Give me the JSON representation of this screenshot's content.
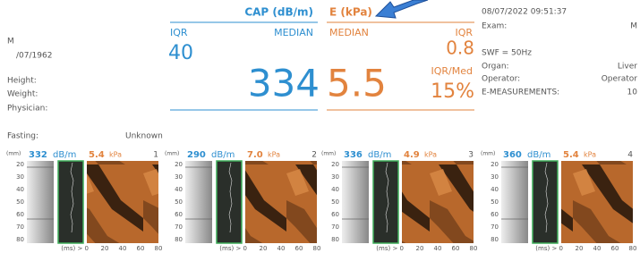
{
  "patient": {
    "sex": "M",
    "dob": "/07/1962",
    "height": "Height:",
    "weight": "Weight:",
    "physician": "Physician:",
    "fasting": "Fasting:",
    "fasting_value": "Unknown"
  },
  "cap": {
    "title": "CAP (dB/m)",
    "iqr_label": "IQR",
    "median_label": "MEDIAN",
    "iqr": "40",
    "median": "334"
  },
  "e": {
    "title": "E (kPa)",
    "median_label": "MEDIAN",
    "iqr_label": "IQR",
    "iqr": "0.8",
    "median": "5.5",
    "ratio_label": "IQR/Med",
    "ratio": "15%"
  },
  "exam": {
    "datetime": "08/07/2022 09:51:37",
    "exam_label": "Exam:",
    "exam_value": "M",
    "swf": "SWF = 50Hz",
    "organ_label": "Organ:",
    "organ": "Liver",
    "operator_label": "Operator:",
    "operator": "Operator",
    "measurements_label": "E-MEASUREMENTS:",
    "measurements": "10"
  },
  "panels": [
    {
      "depth_unit": "(mm)",
      "cap": "332",
      "cap_unit": "dB/m",
      "e": "5.4",
      "e_unit": "kPa",
      "index": "1",
      "y_ticks": [
        "20",
        "30",
        "40",
        "50",
        "60",
        "70",
        "80"
      ],
      "x_ticks": [
        "(ms) > 0",
        "20",
        "40",
        "60",
        "80"
      ]
    },
    {
      "depth_unit": "(mm)",
      "cap": "290",
      "cap_unit": "dB/m",
      "e": "7.0",
      "e_unit": "kPa",
      "index": "2",
      "y_ticks": [
        "20",
        "30",
        "40",
        "50",
        "60",
        "70",
        "80"
      ],
      "x_ticks": [
        "(ms) > 0",
        "20",
        "40",
        "60",
        "80"
      ]
    },
    {
      "depth_unit": "(mm)",
      "cap": "336",
      "cap_unit": "dB/m",
      "e": "4.9",
      "e_unit": "kPa",
      "index": "3",
      "y_ticks": [
        "20",
        "30",
        "40",
        "50",
        "60",
        "70",
        "80"
      ],
      "x_ticks": [
        "(ms) > 0",
        "20",
        "40",
        "60",
        "80"
      ]
    },
    {
      "depth_unit": "(mm)",
      "cap": "360",
      "cap_unit": "dB/m",
      "e": "5.4",
      "e_unit": "kPa",
      "index": "4",
      "y_ticks": [
        "20",
        "30",
        "40",
        "50",
        "60",
        "70",
        "80"
      ],
      "x_ticks": [
        "(ms) > 0",
        "20",
        "40",
        "60",
        "80"
      ]
    }
  ]
}
